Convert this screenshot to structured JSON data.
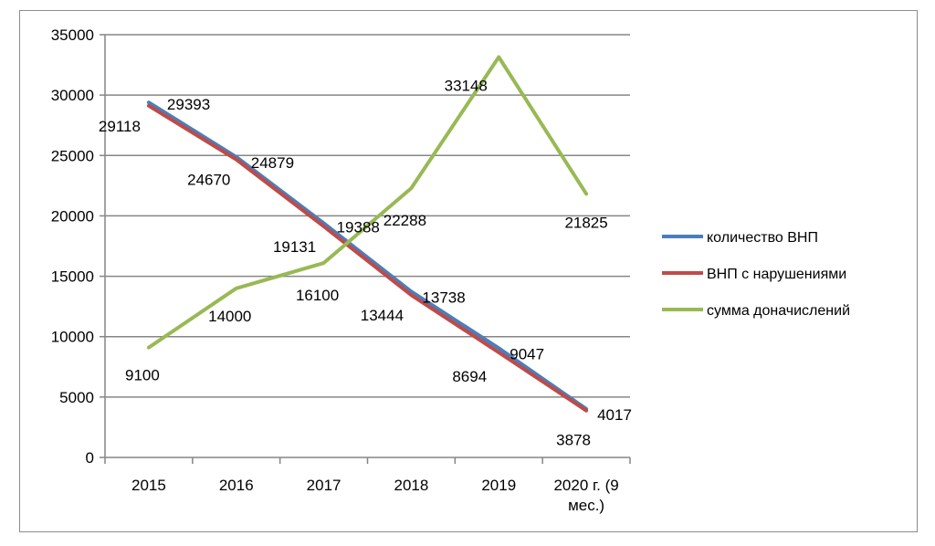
{
  "chart_data": {
    "type": "line",
    "title": "",
    "xlabel": "",
    "ylabel": "",
    "categories": [
      "2015",
      "2016",
      "2017",
      "2018",
      "2019",
      "2020 г. (9 мес.)"
    ],
    "category_lines": [
      [
        "2015"
      ],
      [
        "2016"
      ],
      [
        "2017"
      ],
      [
        "2018"
      ],
      [
        "2019"
      ],
      [
        "2020 г. (9",
        "мес.)"
      ]
    ],
    "ylim": [
      0,
      35000
    ],
    "yticks": [
      0,
      5000,
      10000,
      15000,
      20000,
      25000,
      30000,
      35000
    ],
    "grid": "horizontal",
    "legend_position": "right",
    "series": [
      {
        "name": "количество ВНП",
        "color": "#4a7ebb",
        "values": [
          29393,
          24879,
          19388,
          13738,
          9047,
          4017
        ]
      },
      {
        "name": "ВНП с нарушениями",
        "color": "#be4b48",
        "values": [
          29118,
          24670,
          19131,
          13444,
          8694,
          3878
        ]
      },
      {
        "name": "сумма доначислений",
        "color": "#98b954",
        "values": [
          9100,
          14000,
          16100,
          22288,
          33148,
          21825
        ]
      }
    ]
  }
}
